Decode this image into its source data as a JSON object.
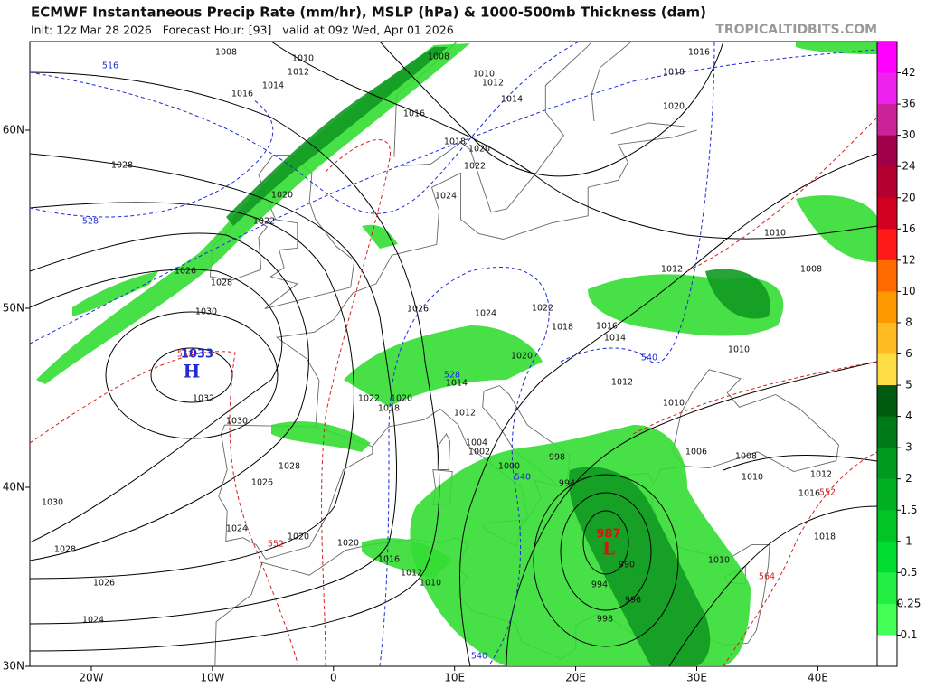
{
  "header": {
    "title": "ECMWF Instantaneous Precip Rate (mm/hr), MSLP (hPa) & 1000-500mb Thickness (dam)",
    "subtitle": "Init: 12z Mar 28 2026   Forecast Hour: [93]   valid at 09z Wed, Apr 01 2026",
    "watermark": "TROPICALTIDBITS.COM"
  },
  "map": {
    "lat_labels": [
      "60N",
      "50N",
      "40N",
      "30N"
    ],
    "lon_labels": [
      "20W",
      "10W",
      "0",
      "10E",
      "20E",
      "30E",
      "40E"
    ],
    "isobar_labels": [
      "1008",
      "1010",
      "1012",
      "1014",
      "1016",
      "1008",
      "1010",
      "1012",
      "1014",
      "1016",
      "1018",
      "1020",
      "1022",
      "1024",
      "1016",
      "1018",
      "1020",
      "1028",
      "1026",
      "1028",
      "1030",
      "1032",
      "1030",
      "1028",
      "1026",
      "1024",
      "1020",
      "1030",
      "1028",
      "1026",
      "1024",
      "1020",
      "1016",
      "1012",
      "1010",
      "1024",
      "1022",
      "1020",
      "1018",
      "1016",
      "1014",
      "1012",
      "1010",
      "1010",
      "1012",
      "1008",
      "1010",
      "1006",
      "1008",
      "1010",
      "1012",
      "1016",
      "1018",
      "1014",
      "1012",
      "1004",
      "1002",
      "1000",
      "998",
      "994",
      "990",
      "994",
      "996",
      "998",
      "1010",
      "1020",
      "1022",
      "1018",
      "1020",
      "1022",
      "1026"
    ],
    "thickness_labels": [
      "516",
      "528",
      "552",
      "528",
      "540",
      "540",
      "540",
      "552",
      "564",
      "552"
    ],
    "highs": [
      {
        "symbol": "H",
        "value": "1033"
      }
    ],
    "lows": [
      {
        "symbol": "L",
        "value": "987"
      }
    ]
  },
  "colorbar": {
    "labels": [
      42,
      36,
      30,
      24,
      20,
      16,
      12,
      10,
      8,
      6,
      5,
      4,
      3,
      2,
      1.5,
      1,
      0.5,
      0.25,
      0.1
    ],
    "colors": [
      "#ff00ff",
      "#ee22ee",
      "#cc2299",
      "#a0004a",
      "#b30030",
      "#d40020",
      "#ff1a1a",
      "#ff6a00",
      "#ff9900",
      "#ffbb22",
      "#ffdd44",
      "#005a10",
      "#007a18",
      "#009a20",
      "#00b020",
      "#00c525",
      "#00dd30",
      "#22ee44",
      "#44ff55",
      "#ffffff"
    ]
  }
}
